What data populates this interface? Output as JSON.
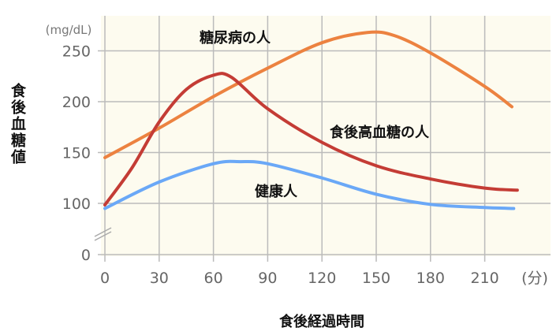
{
  "chart_data": {
    "type": "line",
    "title": "",
    "xlabel": "食後経過時間",
    "ylabel": "食後血糖値",
    "x_unit": "(分)",
    "y_unit": "(mg/dL)",
    "xlim": [
      0,
      230
    ],
    "ylim": [
      0,
      270
    ],
    "y_axis_break": [
      0,
      100
    ],
    "grid": true,
    "background_color": "#fdfbef",
    "x_ticks": [
      0,
      30,
      60,
      90,
      120,
      150,
      180,
      210
    ],
    "x_tick_labels": [
      "0",
      "30",
      "60",
      "90",
      "120",
      "150",
      "180",
      "210"
    ],
    "y_ticks": [
      0,
      100,
      150,
      200,
      250
    ],
    "y_tick_labels": [
      "0",
      "100",
      "150",
      "200",
      "250"
    ],
    "series": [
      {
        "name": "糖尿病の人",
        "color": "#ec8240",
        "x": [
          0,
          30,
          60,
          90,
          120,
          145,
          160,
          180,
          210,
          225
        ],
        "y": [
          145,
          174,
          205,
          233,
          258,
          268,
          265,
          248,
          215,
          195
        ]
      },
      {
        "name": "食後高血糖の人",
        "color": "#c43c35",
        "x": [
          0,
          15,
          30,
          45,
          60,
          70,
          90,
          120,
          150,
          180,
          210,
          228
        ],
        "y": [
          97,
          135,
          180,
          212,
          226,
          224,
          193,
          160,
          137,
          124,
          115,
          113
        ]
      },
      {
        "name": "健康人",
        "color": "#6aa8f7",
        "x": [
          0,
          30,
          60,
          75,
          90,
          120,
          150,
          180,
          210,
          226
        ],
        "y": [
          90,
          121,
          139,
          141,
          139,
          125,
          109,
          98,
          92,
          90
        ]
      }
    ]
  }
}
